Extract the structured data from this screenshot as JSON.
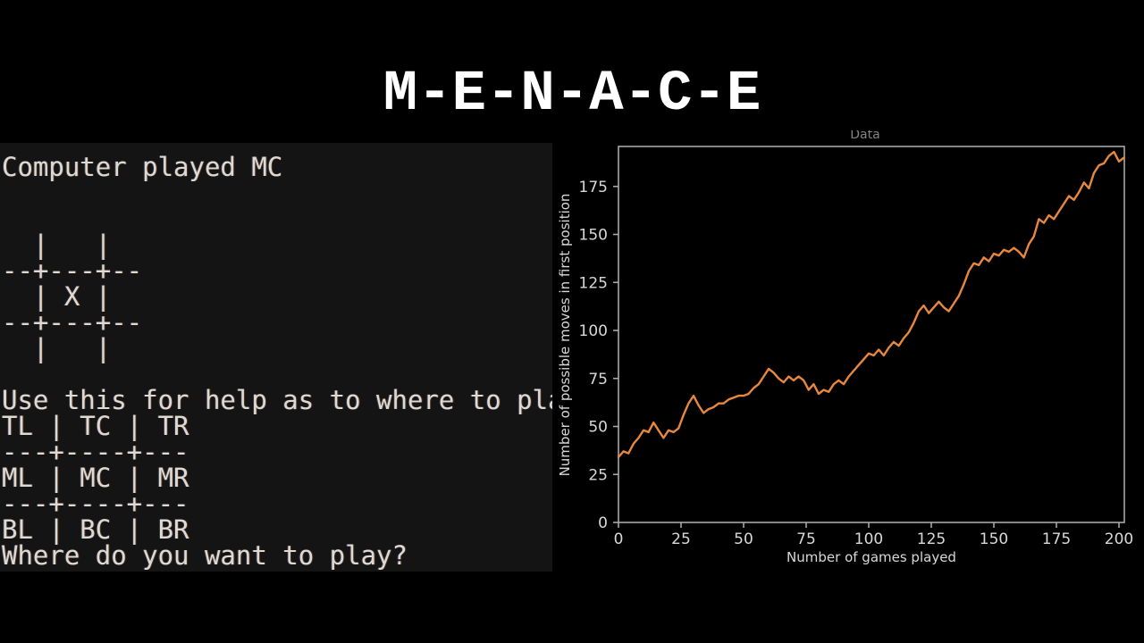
{
  "title": "M-E-N-A-C-E",
  "terminal": {
    "lines": [
      "Computer played MC",
      "",
      "",
      "  |   |",
      "--+---+--",
      "  | X |",
      "--+---+--",
      "  |   |",
      "",
      "Use this for help as to where to play",
      "TL | TC | TR",
      "---+----+---",
      "ML | MC | MR",
      "---+----+---",
      "BL | BC | BR",
      "Where do you want to play?"
    ],
    "prompt": "Where do you want to play?",
    "background_color": "#141414",
    "text_color": "#ded9d2"
  },
  "chart_data": {
    "type": "line",
    "title_partial": "Data",
    "xlabel": "Number of games played",
    "ylabel": "Number of possible moves in first position",
    "xticks": [
      0,
      25,
      50,
      75,
      100,
      125,
      150,
      175,
      200
    ],
    "yticks": [
      0,
      25,
      50,
      75,
      100,
      125,
      150,
      175
    ],
    "xlim": [
      0,
      202
    ],
    "ylim": [
      0,
      196
    ],
    "grid": false,
    "legend": "none",
    "line_color": "#e8883e",
    "axis_color": "#a8a8a8",
    "series": [
      {
        "name": "possible moves in first position",
        "points": [
          [
            0,
            34
          ],
          [
            2,
            37
          ],
          [
            4,
            36
          ],
          [
            6,
            41
          ],
          [
            8,
            44
          ],
          [
            10,
            48
          ],
          [
            12,
            47
          ],
          [
            14,
            52
          ],
          [
            16,
            48
          ],
          [
            18,
            44
          ],
          [
            20,
            48
          ],
          [
            22,
            47
          ],
          [
            24,
            49
          ],
          [
            26,
            56
          ],
          [
            28,
            62
          ],
          [
            30,
            66
          ],
          [
            32,
            61
          ],
          [
            34,
            57
          ],
          [
            36,
            59
          ],
          [
            38,
            60
          ],
          [
            40,
            62
          ],
          [
            42,
            62
          ],
          [
            44,
            64
          ],
          [
            46,
            65
          ],
          [
            48,
            66
          ],
          [
            50,
            66
          ],
          [
            52,
            67
          ],
          [
            54,
            70
          ],
          [
            56,
            72
          ],
          [
            58,
            76
          ],
          [
            60,
            80
          ],
          [
            62,
            78
          ],
          [
            64,
            75
          ],
          [
            66,
            73
          ],
          [
            68,
            76
          ],
          [
            70,
            74
          ],
          [
            72,
            76
          ],
          [
            74,
            74
          ],
          [
            76,
            69
          ],
          [
            78,
            72
          ],
          [
            80,
            67
          ],
          [
            82,
            69
          ],
          [
            84,
            68
          ],
          [
            86,
            72
          ],
          [
            88,
            74
          ],
          [
            90,
            72
          ],
          [
            92,
            76
          ],
          [
            94,
            79
          ],
          [
            96,
            82
          ],
          [
            98,
            85
          ],
          [
            100,
            88
          ],
          [
            102,
            87
          ],
          [
            104,
            90
          ],
          [
            106,
            87
          ],
          [
            108,
            91
          ],
          [
            110,
            94
          ],
          [
            112,
            92
          ],
          [
            114,
            96
          ],
          [
            116,
            99
          ],
          [
            118,
            104
          ],
          [
            120,
            110
          ],
          [
            122,
            113
          ],
          [
            124,
            109
          ],
          [
            126,
            112
          ],
          [
            128,
            115
          ],
          [
            130,
            112
          ],
          [
            132,
            110
          ],
          [
            134,
            114
          ],
          [
            136,
            118
          ],
          [
            138,
            124
          ],
          [
            140,
            131
          ],
          [
            142,
            135
          ],
          [
            144,
            134
          ],
          [
            146,
            138
          ],
          [
            148,
            136
          ],
          [
            150,
            140
          ],
          [
            152,
            139
          ],
          [
            154,
            142
          ],
          [
            156,
            141
          ],
          [
            158,
            143
          ],
          [
            160,
            141
          ],
          [
            162,
            138
          ],
          [
            164,
            145
          ],
          [
            166,
            149
          ],
          [
            168,
            158
          ],
          [
            170,
            156
          ],
          [
            172,
            160
          ],
          [
            174,
            158
          ],
          [
            176,
            162
          ],
          [
            178,
            166
          ],
          [
            180,
            170
          ],
          [
            182,
            168
          ],
          [
            184,
            172
          ],
          [
            186,
            177
          ],
          [
            188,
            174
          ],
          [
            190,
            182
          ],
          [
            192,
            186
          ],
          [
            194,
            187
          ],
          [
            196,
            191
          ],
          [
            198,
            193
          ],
          [
            200,
            188
          ],
          [
            202,
            190
          ]
        ]
      }
    ]
  }
}
